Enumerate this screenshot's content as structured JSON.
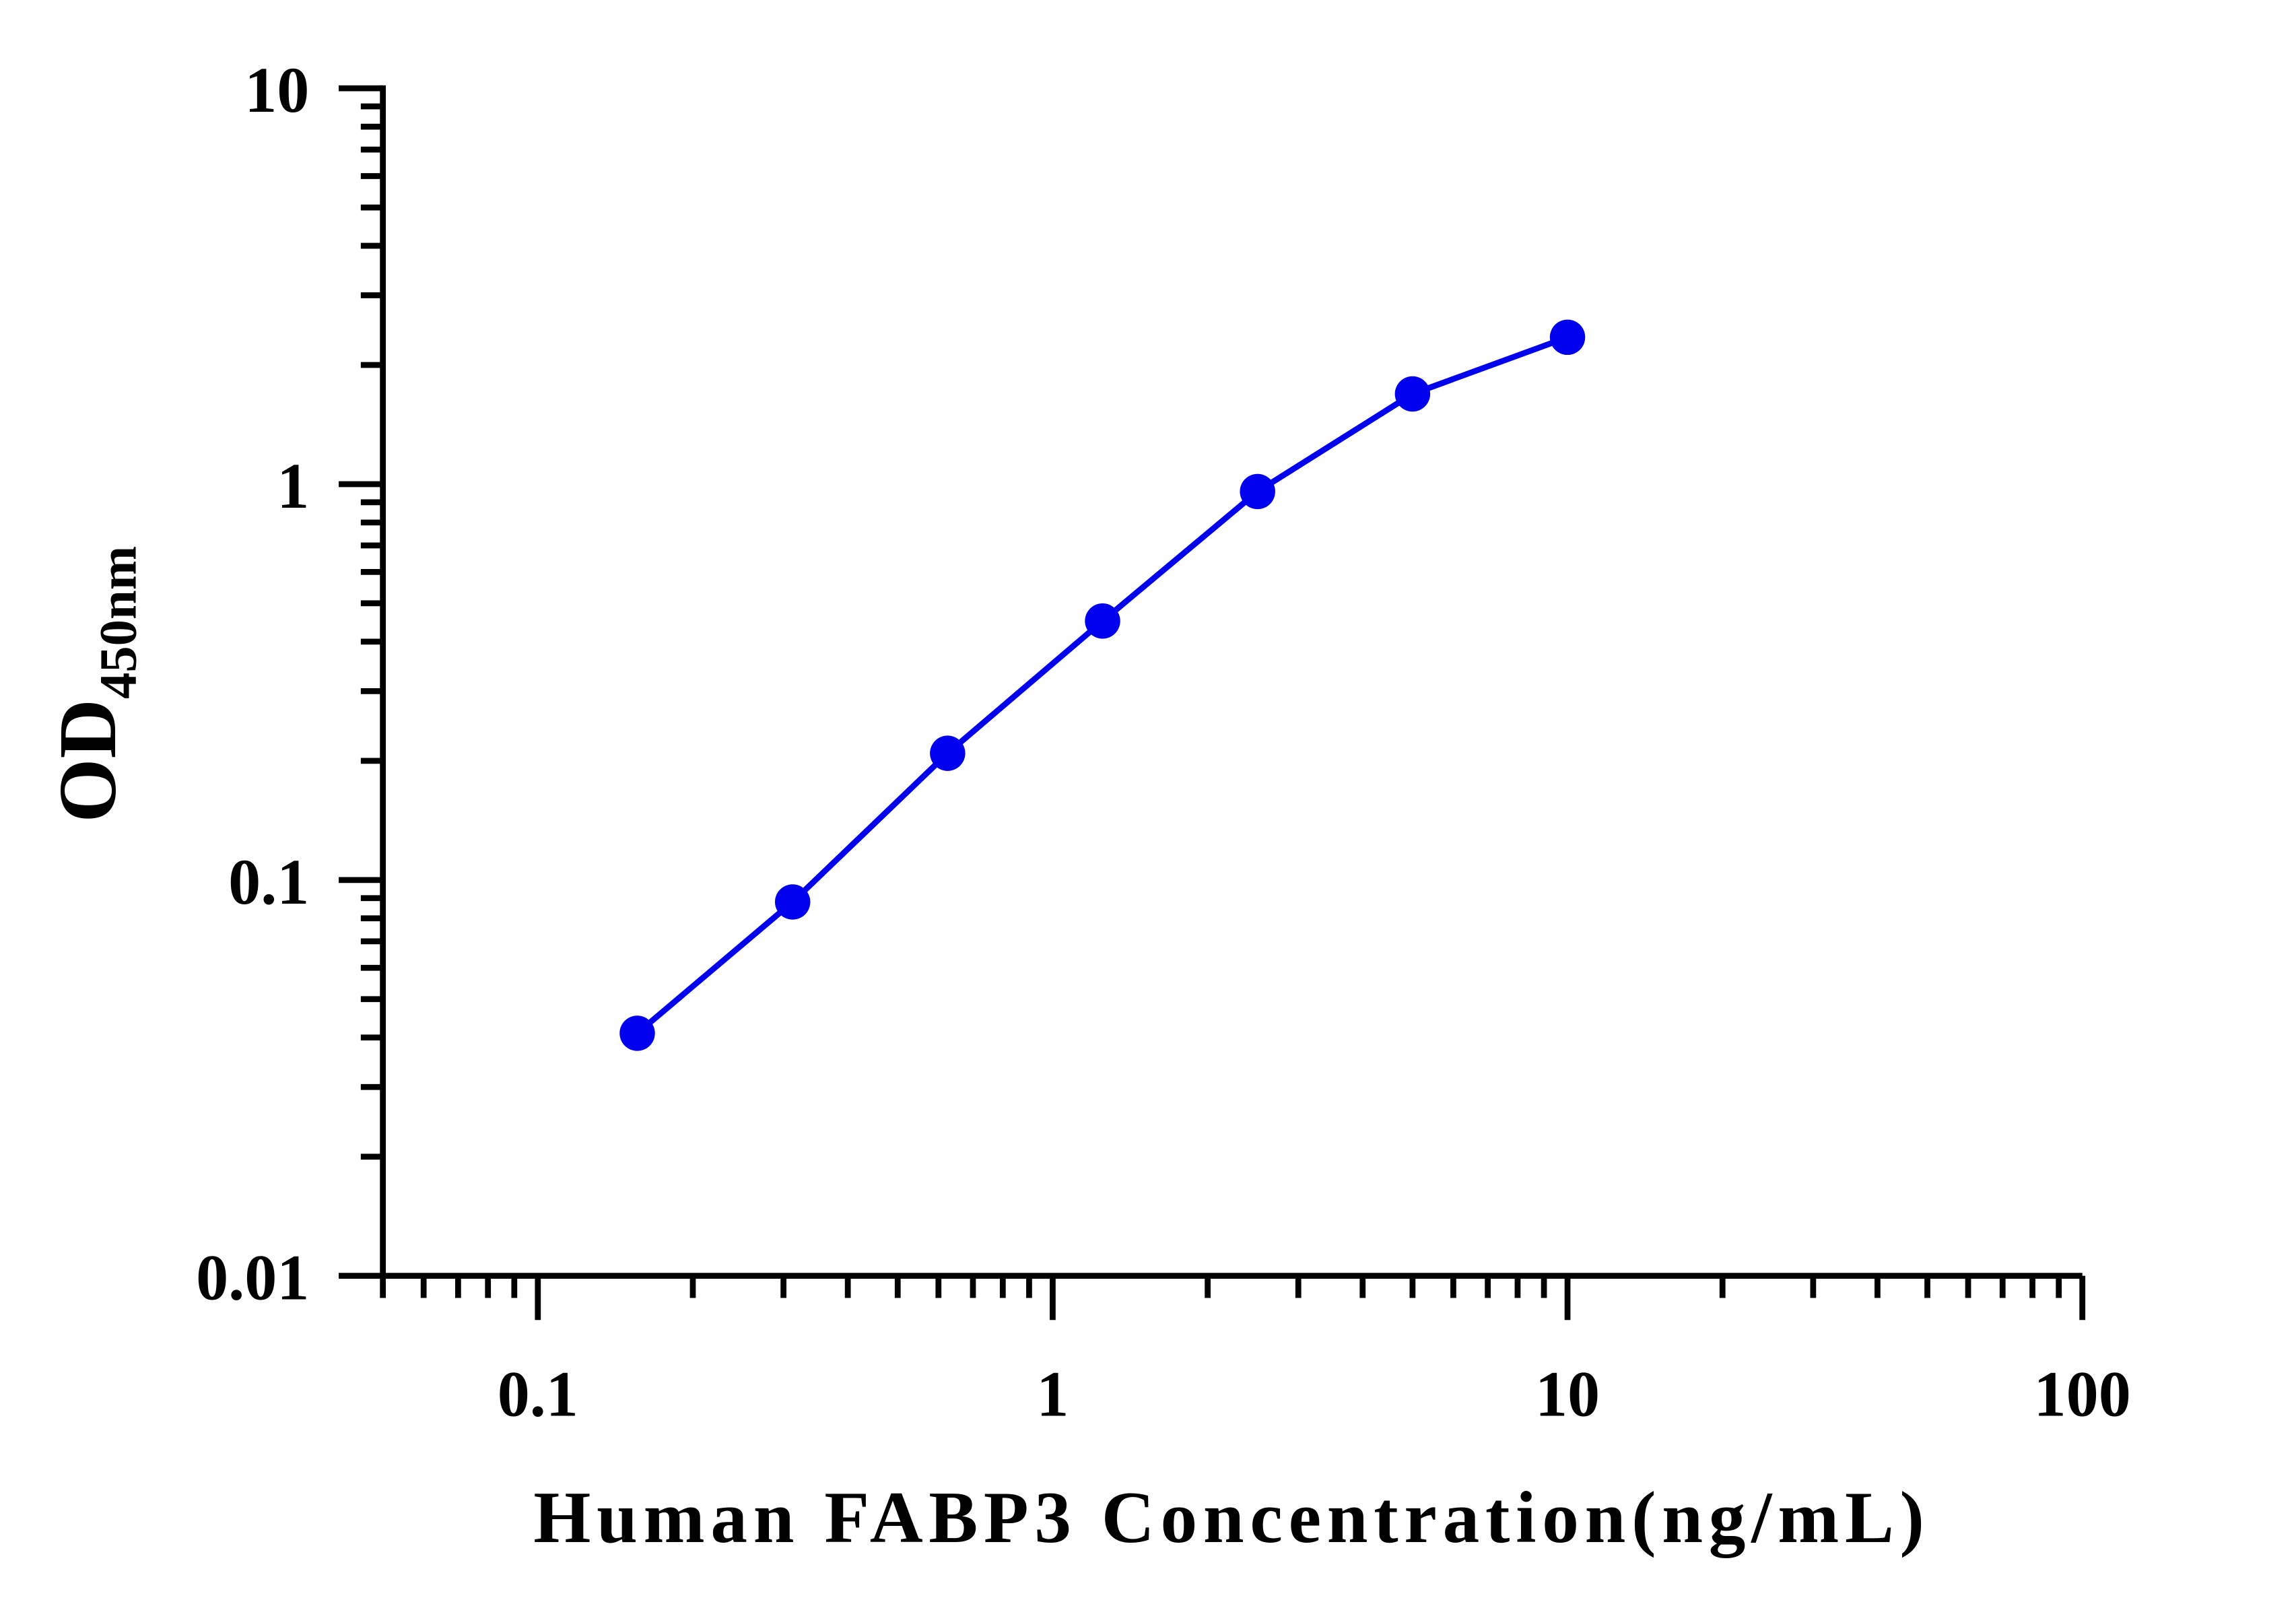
{
  "chart_data": {
    "type": "line",
    "title": "",
    "xlabel": "Human FABP3 Concentration(ng/mL)",
    "ylabel_main": "OD",
    "ylabel_sub": "450nm",
    "x_scale": "log",
    "y_scale": "log",
    "xlim": [
      0.05,
      100
    ],
    "ylim": [
      0.01,
      10
    ],
    "x_ticks": [
      0.1,
      1,
      10,
      100
    ],
    "x_tick_labels": [
      "0.1",
      "1",
      "10",
      "100"
    ],
    "y_ticks": [
      0.01,
      0.1,
      1,
      10
    ],
    "y_tick_labels": [
      "0.01",
      "0.1",
      "1",
      "10"
    ],
    "grid": false,
    "legend": "none",
    "series_color": "#0000EE",
    "series": [
      {
        "x": [
          0.156,
          0.3125,
          0.625,
          1.25,
          2.5,
          5,
          10
        ],
        "y": [
          0.041,
          0.088,
          0.209,
          0.451,
          0.958,
          1.69,
          2.35
        ]
      }
    ]
  }
}
